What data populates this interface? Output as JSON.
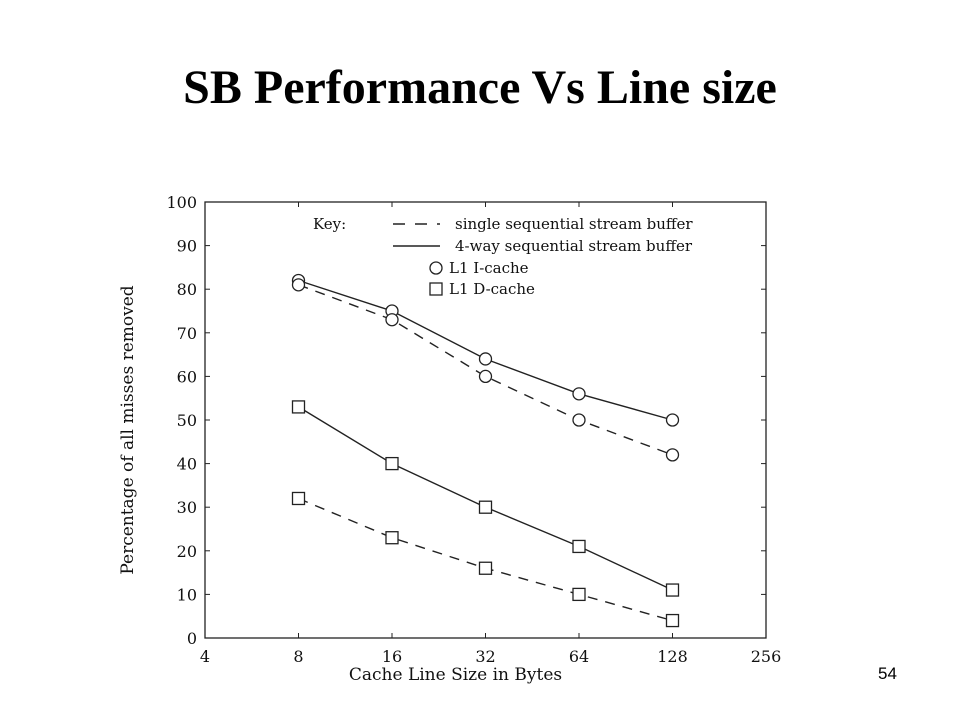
{
  "slide": {
    "title": "SB Performance Vs Line size",
    "page_number": "54"
  },
  "chart_data": {
    "type": "line",
    "xlabel": "Cache Line Size in Bytes",
    "ylabel": "Percentage of all misses removed",
    "x_scale": "log2",
    "xlim": [
      4,
      256
    ],
    "ylim": [
      0,
      100
    ],
    "x_ticks": [
      4,
      8,
      16,
      32,
      64,
      128,
      256
    ],
    "y_ticks": [
      0,
      10,
      20,
      30,
      40,
      50,
      60,
      70,
      80,
      90,
      100
    ],
    "grid": false,
    "legend_position": "top-right",
    "legend": {
      "title": "Key:",
      "entries": [
        {
          "label": "single sequential stream buffer",
          "kind": "line",
          "style": "dashed"
        },
        {
          "label": "4-way sequential stream buffer",
          "kind": "line",
          "style": "solid"
        },
        {
          "label": "L1 I-cache",
          "kind": "marker",
          "marker": "circle"
        },
        {
          "label": "L1 D-cache",
          "kind": "marker",
          "marker": "square"
        }
      ]
    },
    "x": [
      8,
      16,
      32,
      64,
      128
    ],
    "series": [
      {
        "name": "4-way sequential stream buffer, L1 I-cache",
        "style": "solid",
        "marker": "circle",
        "values": [
          82,
          75,
          64,
          56,
          50
        ]
      },
      {
        "name": "single sequential stream buffer, L1 I-cache",
        "style": "dashed",
        "marker": "circle",
        "values": [
          81,
          73,
          60,
          50,
          42
        ]
      },
      {
        "name": "4-way sequential stream buffer, L1 D-cache",
        "style": "solid",
        "marker": "square",
        "values": [
          53,
          40,
          30,
          21,
          11
        ]
      },
      {
        "name": "single sequential stream buffer, L1 D-cache",
        "style": "dashed",
        "marker": "square",
        "values": [
          32,
          23,
          16,
          10,
          4
        ]
      }
    ],
    "color": "#222222"
  }
}
